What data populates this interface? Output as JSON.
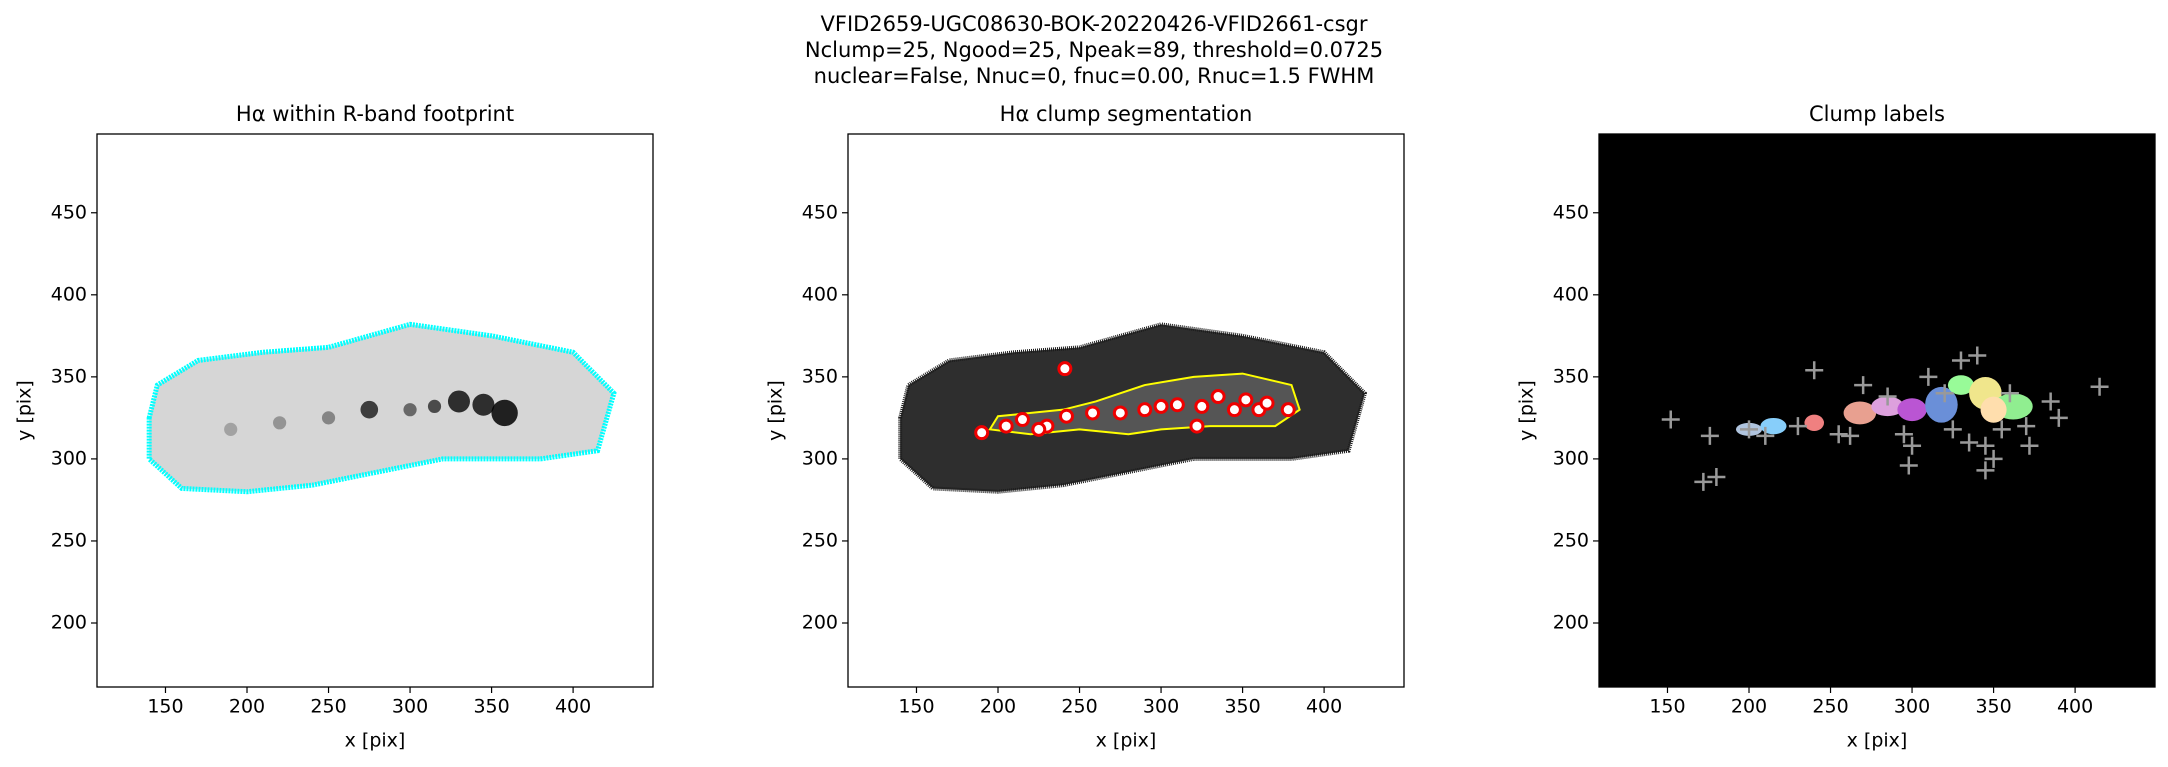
{
  "suptitle": [
    "VFID2659-UGC08630-BOK-20220426-VFID2661-csgr",
    "Nclump=25, Ngood=25, Npeak=89, threshold=0.0725",
    "nuclear=False, Nnuc=0, fnuc=0.00, Rnuc=1.5 FWHM"
  ],
  "chart_data": [
    {
      "type": "image",
      "title": "Hα within R-band footprint",
      "xlabel": "x [pix]",
      "ylabel": "y [pix]",
      "xlim": [
        108,
        449
      ],
      "ylim": [
        161,
        498
      ],
      "xticks": [
        150,
        200,
        250,
        300,
        350,
        400
      ],
      "yticks": [
        200,
        250,
        300,
        350,
        400,
        450
      ]
    },
    {
      "type": "image",
      "title": "Hα clump segmentation",
      "xlabel": "x [pix]",
      "ylabel": "y [pix]",
      "xlim": [
        108,
        449
      ],
      "ylim": [
        161,
        498
      ],
      "xticks": [
        150,
        200,
        250,
        300,
        350,
        400
      ],
      "yticks": [
        200,
        250,
        300,
        350,
        400,
        450
      ]
    },
    {
      "type": "image",
      "title": "Clump labels",
      "xlabel": "x [pix]",
      "ylabel": "y [pix]",
      "xlim": [
        108,
        449
      ],
      "ylim": [
        161,
        498
      ],
      "xticks": [
        150,
        200,
        250,
        300,
        350,
        400
      ],
      "yticks": [
        200,
        250,
        300,
        350,
        400,
        450
      ]
    }
  ]
}
